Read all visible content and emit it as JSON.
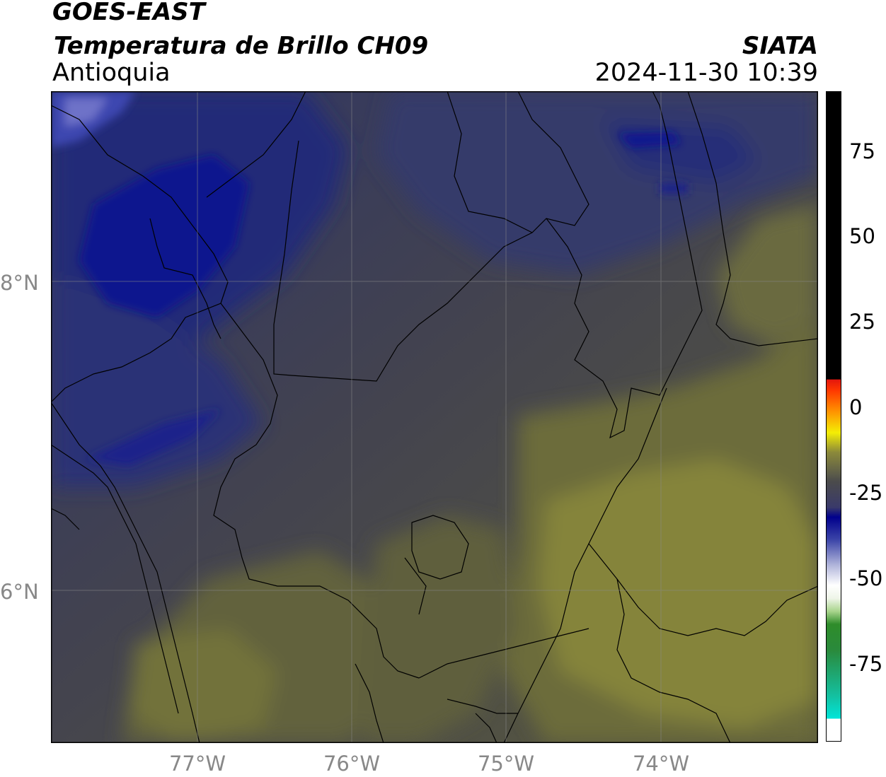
{
  "header": {
    "satellite": "GOES-EAST",
    "product": "Temperatura de Brillo CH09",
    "brand": "SIATA",
    "region": "Antioquia",
    "datetime": "2024-11-30 10:39"
  },
  "map": {
    "lon_labels": [
      "77°W",
      "76°W",
      "75°W",
      "74°W"
    ],
    "lat_labels": [
      "8°N",
      "6°N"
    ],
    "colors": {
      "cold_blue": "#161e8c",
      "mid_blue": "#2d3572",
      "gray": "#45454f",
      "olive": "#666638",
      "yellow_olive": "#85843a",
      "border": "#000000",
      "grid": "#8a8a8a"
    }
  },
  "colorbar": {
    "ticks": [
      "75",
      "50",
      "25",
      "0",
      "-25",
      "-50",
      "-75"
    ],
    "colors": {
      "black": "#000000",
      "red": "#e4170d",
      "orange": "#ff8c00",
      "yellow": "#f4ee05",
      "gray": "#4b4b4b",
      "navy": "#00008c",
      "white": "#ffffff",
      "green": "#1f8a1f",
      "cyan": "#00e5d9"
    }
  }
}
